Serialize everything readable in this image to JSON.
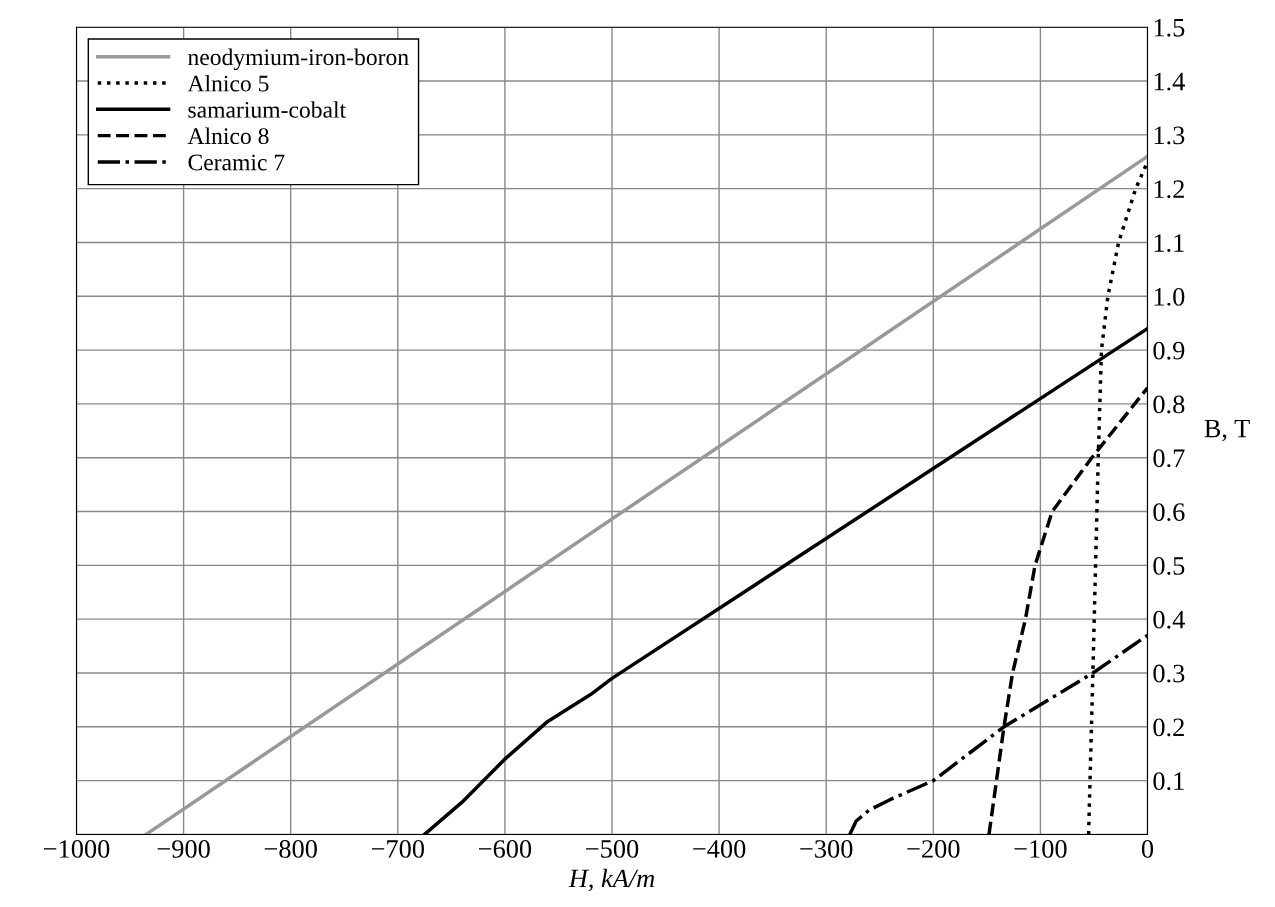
{
  "chart_data": {
    "type": "line",
    "xlabel": "H, kA/m",
    "ylabel": "B, T",
    "xlim": [
      -1000,
      0
    ],
    "ylim": [
      0,
      1.5
    ],
    "xticks": [
      {
        "value": -1000,
        "label": "−1000"
      },
      {
        "value": -900,
        "label": "−900"
      },
      {
        "value": -800,
        "label": "−800"
      },
      {
        "value": -700,
        "label": "−700"
      },
      {
        "value": -600,
        "label": "−600"
      },
      {
        "value": -500,
        "label": "−500"
      },
      {
        "value": -400,
        "label": "−400"
      },
      {
        "value": -300,
        "label": "−300"
      },
      {
        "value": -200,
        "label": "−200"
      },
      {
        "value": -100,
        "label": "−100"
      },
      0
    ],
    "yticks": [
      {
        "value": 0,
        "label": null
      },
      0.1,
      0.2,
      0.3,
      0.4,
      0.5,
      0.6,
      0.7,
      0.8,
      0.9,
      {
        "value": 1.0,
        "label": "1.0"
      },
      1.1,
      1.2,
      1.3,
      1.4,
      1.5
    ],
    "grid": true,
    "legend": "top left",
    "series": [
      {
        "name": "neodymium-iron-boron",
        "color": "#999999",
        "line_style": "solid",
        "x": [
          -935,
          0
        ],
        "values": [
          0,
          1.26
        ]
      },
      {
        "name": "Alnico 5",
        "color": "#000000",
        "line_style": "dotted",
        "x": [
          -55,
          -51,
          -46,
          -43,
          -37,
          -27,
          -11,
          0
        ],
        "values": [
          0,
          0.3,
          0.7,
          0.9,
          1.0,
          1.1,
          1.2,
          1.25
        ]
      },
      {
        "name": "samarium-cobalt",
        "color": "#000000",
        "line_style": "solid",
        "x": [
          -675,
          -640,
          -600,
          -560,
          -520,
          -500,
          0
        ],
        "values": [
          0,
          0.06,
          0.14,
          0.21,
          0.26,
          0.29,
          0.94
        ]
      },
      {
        "name": "Alnico 8",
        "color": "#000000",
        "line_style": "dashed",
        "x": [
          -148,
          -141,
          -134,
          -126,
          -114,
          -105,
          -89,
          -52,
          0
        ],
        "values": [
          0,
          0.1,
          0.2,
          0.3,
          0.4,
          0.5,
          0.6,
          0.7,
          0.83
        ]
      },
      {
        "name": "Ceramic 7",
        "color": "#000000",
        "line_style": "dashdot",
        "x": [
          -278,
          -272,
          -260,
          -240,
          -200,
          -134,
          -51,
          0
        ],
        "values": [
          0,
          0.025,
          0.045,
          0.065,
          0.1,
          0.2,
          0.3,
          0.37
        ]
      }
    ]
  }
}
